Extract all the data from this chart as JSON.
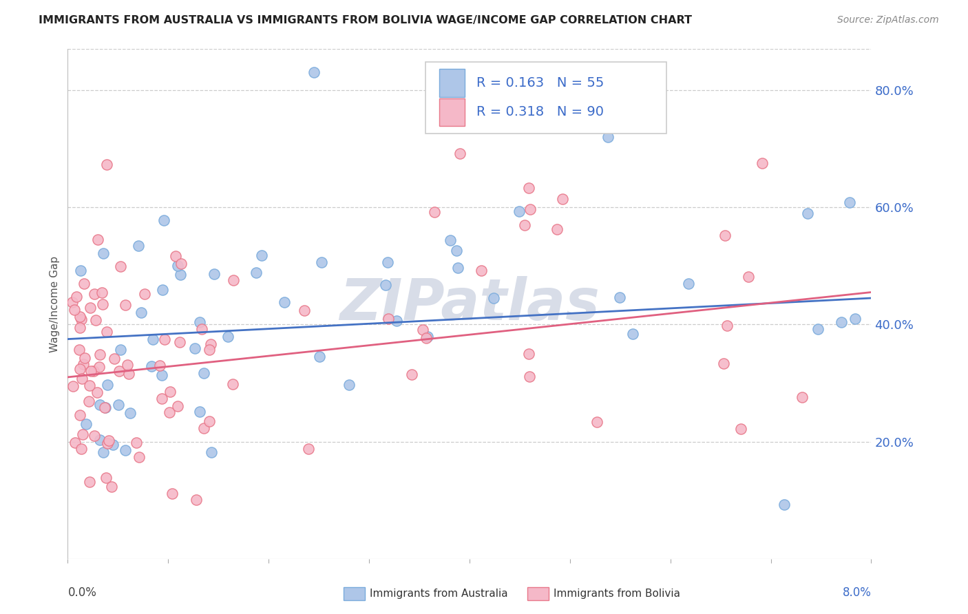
{
  "title": "IMMIGRANTS FROM AUSTRALIA VS IMMIGRANTS FROM BOLIVIA WAGE/INCOME GAP CORRELATION CHART",
  "source": "Source: ZipAtlas.com",
  "ylabel": "Wage/Income Gap",
  "australia_color": "#aec6e8",
  "australia_edge_color": "#7aabdc",
  "bolivia_color": "#f5b8c8",
  "bolivia_edge_color": "#e8788a",
  "australia_trend_color": "#4472c4",
  "bolivia_trend_color": "#e06080",
  "legend_text_color": "#3b6bc9",
  "ytick_color": "#3b6bc9",
  "xtick_color_left": "#444444",
  "xtick_color_right": "#3b6bc9",
  "grid_color": "#cccccc",
  "watermark_color": "#d8dde8",
  "title_color": "#222222",
  "source_color": "#888888",
  "ylabel_color": "#555555",
  "australia_R": 0.163,
  "australia_N": 55,
  "bolivia_R": 0.318,
  "bolivia_N": 90,
  "aus_trend_x0": 0.0,
  "aus_trend_x1": 0.08,
  "aus_trend_y0": 0.375,
  "aus_trend_y1": 0.445,
  "bol_trend_x0": 0.0,
  "bol_trend_x1": 0.08,
  "bol_trend_y0": 0.31,
  "bol_trend_y1": 0.455,
  "xlim": [
    0.0,
    0.08
  ],
  "ylim": [
    0.0,
    0.87
  ],
  "ytick_vals": [
    0.2,
    0.4,
    0.6,
    0.8
  ],
  "ytick_labels": [
    "20.0%",
    "40.0%",
    "60.0%",
    "80.0%"
  ]
}
